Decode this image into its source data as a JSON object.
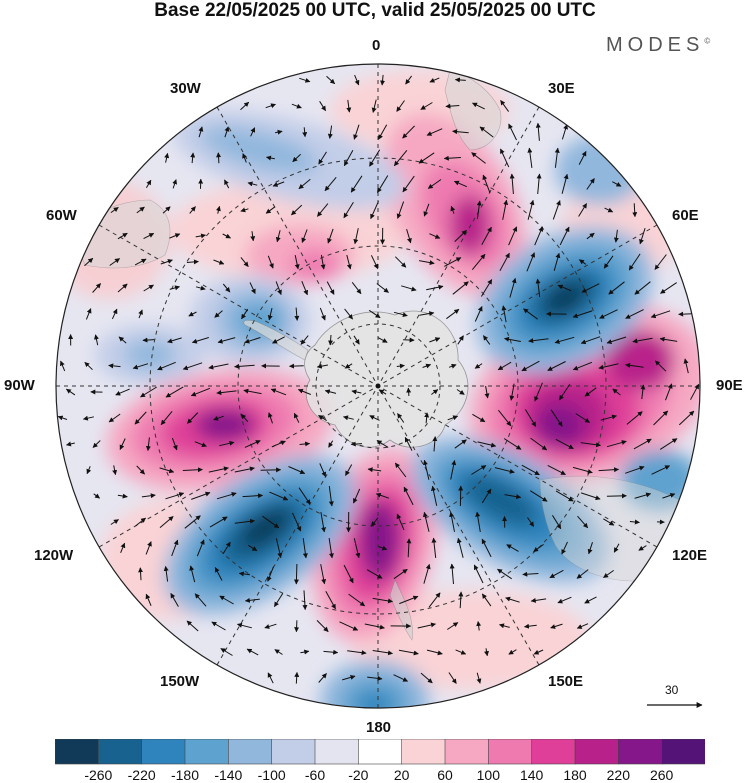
{
  "header": {
    "title": "Base 22/05/2025 00 UTC, valid 25/05/2025 00 UTC",
    "brand": "MODES",
    "brand_mark": "©"
  },
  "map": {
    "projection": "south-polar-stereographic",
    "longitude_labels": {
      "top": "0",
      "top_right": "30E",
      "right_upper": "60E",
      "right": "90E",
      "right_lower": "120E",
      "bottom_right": "150E",
      "bottom": "180",
      "bottom_left": "150W",
      "left_lower": "120W",
      "left": "90W",
      "left_upper": "60W",
      "top_left": "30W"
    },
    "field": "geopotential height anomaly with wind vectors",
    "reference_vector_value": "30"
  },
  "colorbar": {
    "labels": [
      "-260",
      "-220",
      "-180",
      "-140",
      "-100",
      "-60",
      "-20",
      "20",
      "60",
      "100",
      "140",
      "180",
      "220",
      "260"
    ],
    "colors": [
      "#113a58",
      "#17628f",
      "#2f84bd",
      "#5ea2cf",
      "#91b7dd",
      "#c2cde8",
      "#e4e4f1",
      "#ffffff",
      "#f9d3d6",
      "#f6a8c2",
      "#ee7ab0",
      "#df3f98",
      "#b8208a",
      "#85178a",
      "#531377"
    ]
  }
}
